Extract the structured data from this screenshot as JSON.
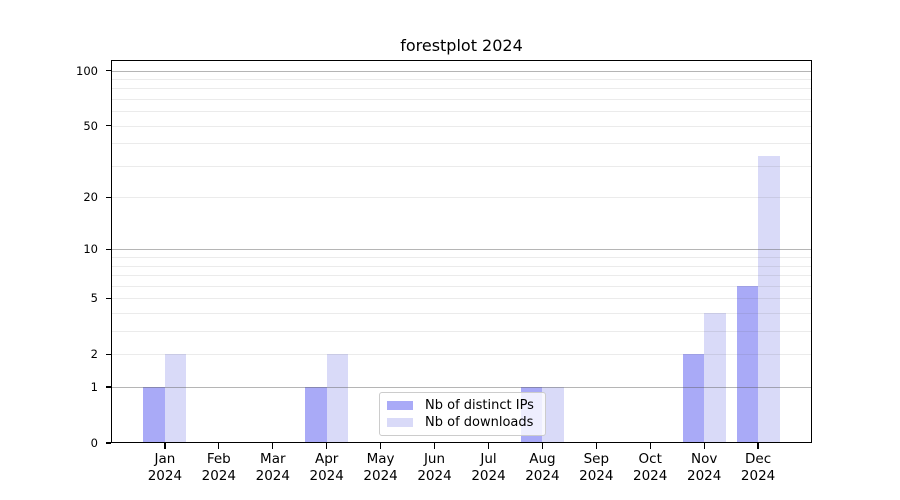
{
  "figure": {
    "background": "#ffffff"
  },
  "chart_data": {
    "type": "bar",
    "title": "forestplot 2024",
    "categories": [
      "Jan 2024",
      "Feb 2024",
      "Mar 2024",
      "Apr 2024",
      "May 2024",
      "Jun 2024",
      "Jul 2024",
      "Aug 2024",
      "Sep 2024",
      "Oct 2024",
      "Nov 2024",
      "Dec 2024"
    ],
    "series": [
      {
        "name": "Nb of distinct IPs",
        "color": "#a9aaf7",
        "values": [
          1,
          0,
          0,
          1,
          0,
          0,
          0,
          1,
          0,
          0,
          2,
          6
        ]
      },
      {
        "name": "Nb of downloads",
        "color": "#d9daf8",
        "values": [
          2,
          0,
          0,
          2,
          0,
          0,
          0,
          1,
          0,
          0,
          4,
          34
        ]
      }
    ],
    "xlabel": "",
    "ylabel": "",
    "yscale": "log1p",
    "ylim": [
      0,
      114
    ],
    "y_ticks": [
      0,
      1,
      2,
      5,
      10,
      20,
      50,
      100
    ],
    "grid_major": [
      1,
      10,
      100
    ],
    "grid_minor": [
      2,
      3,
      4,
      5,
      6,
      7,
      8,
      9,
      20,
      30,
      40,
      50,
      60,
      70,
      80,
      90
    ],
    "grid": "on",
    "legend_position": "lower center",
    "bar_group_width_ratio": 0.8
  }
}
